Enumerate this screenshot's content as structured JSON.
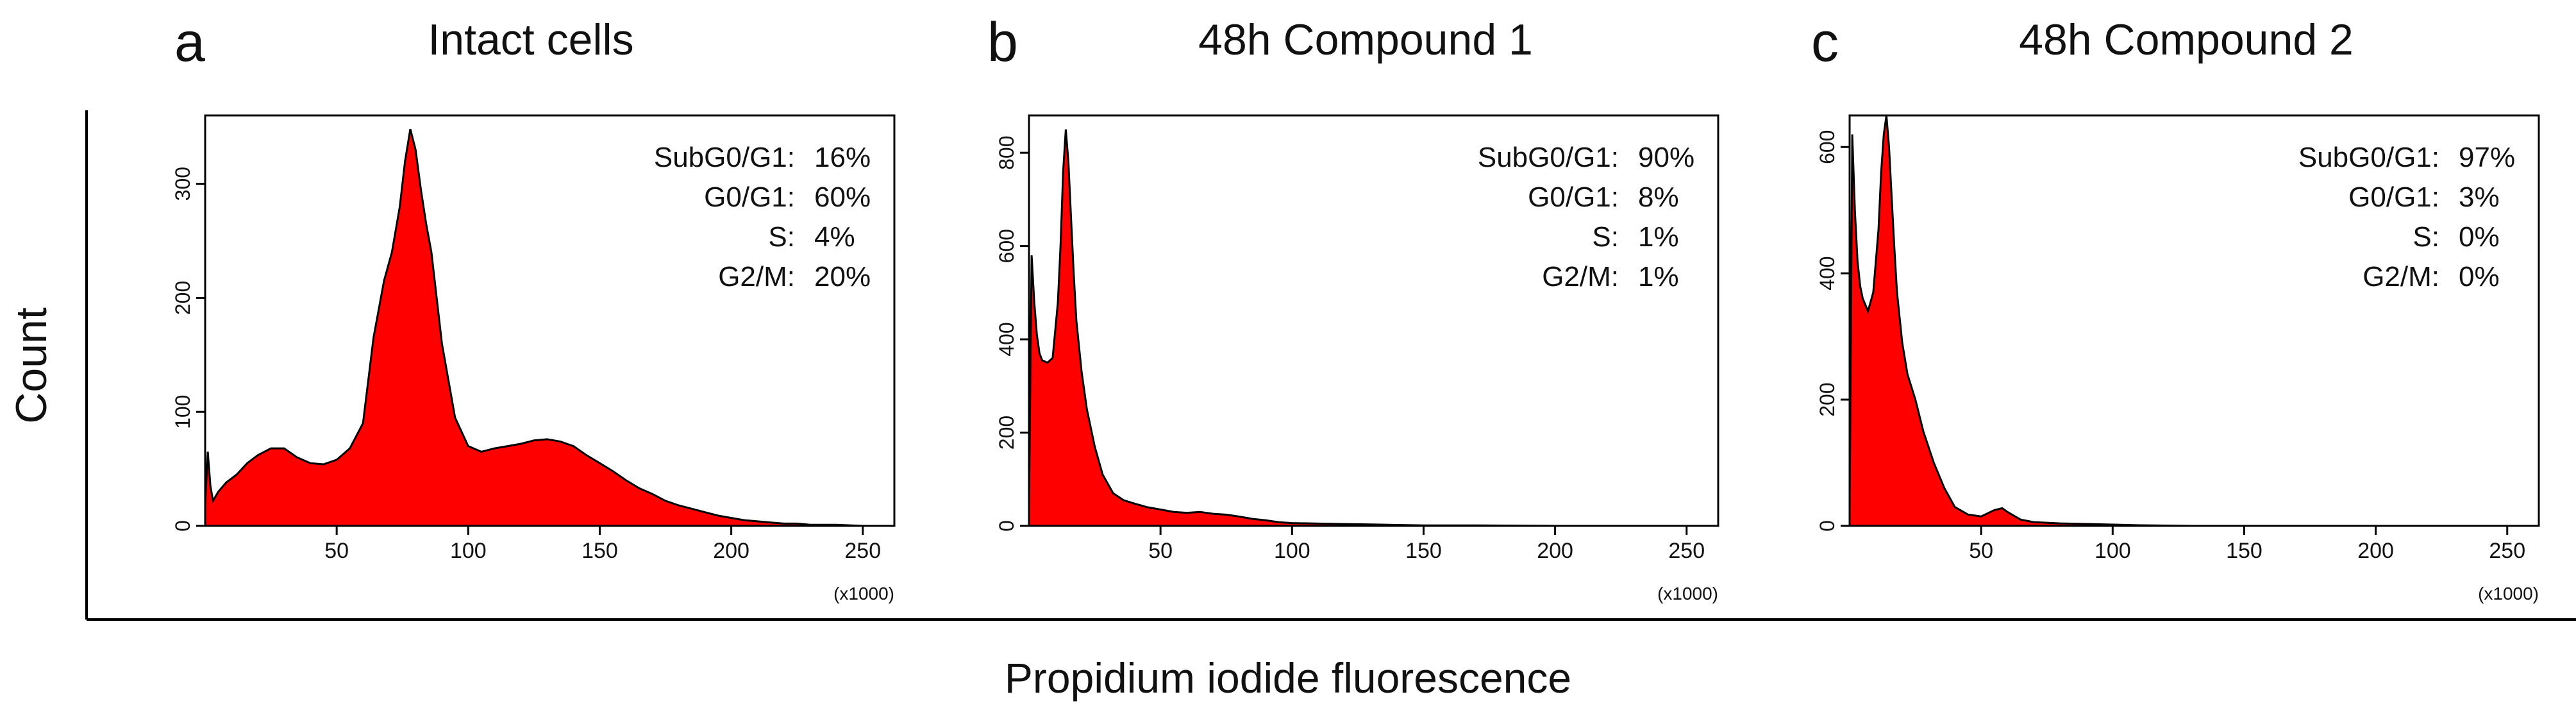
{
  "figure": {
    "ylabel": "Count",
    "xlabel": "Propidium iodide fluorescence"
  },
  "chart_data": [
    {
      "type": "area",
      "panel_letter": "a",
      "title": "Intact cells",
      "x_multiplier_label": "(x1000)",
      "xlim": [
        0,
        262
      ],
      "ylim": [
        0,
        360
      ],
      "x_ticks": [
        50,
        100,
        150,
        200,
        250
      ],
      "y_ticks": [
        0,
        100,
        200,
        300
      ],
      "fill_color": "#ff0000",
      "outline_color": "#000000",
      "x": [
        0,
        1,
        2,
        3,
        5,
        8,
        12,
        16,
        20,
        25,
        30,
        35,
        40,
        45,
        50,
        55,
        60,
        64,
        68,
        71,
        74,
        76,
        78,
        80,
        82,
        84,
        86,
        90,
        95,
        100,
        105,
        110,
        115,
        120,
        125,
        130,
        135,
        140,
        145,
        150,
        155,
        160,
        165,
        170,
        175,
        180,
        185,
        190,
        195,
        200,
        205,
        210,
        215,
        220,
        225,
        230,
        240,
        250,
        260
      ],
      "y": [
        20,
        65,
        35,
        22,
        30,
        38,
        45,
        55,
        62,
        68,
        68,
        60,
        55,
        54,
        58,
        68,
        90,
        165,
        215,
        240,
        280,
        320,
        348,
        330,
        295,
        265,
        240,
        160,
        95,
        70,
        65,
        68,
        70,
        72,
        75,
        76,
        74,
        70,
        62,
        55,
        48,
        40,
        33,
        28,
        22,
        18,
        15,
        12,
        9,
        7,
        5,
        4,
        3,
        2,
        2,
        1,
        1,
        0,
        0
      ],
      "stats": [
        {
          "label": "SubG0/G1:",
          "value": "16%"
        },
        {
          "label": "G0/G1:",
          "value": "60%"
        },
        {
          "label": "S:",
          "value": "4%"
        },
        {
          "label": "G2/M:",
          "value": "20%"
        }
      ]
    },
    {
      "type": "area",
      "panel_letter": "b",
      "title": "48h Compound 1",
      "x_multiplier_label": "(x1000)",
      "xlim": [
        0,
        262
      ],
      "ylim": [
        0,
        880
      ],
      "x_ticks": [
        50,
        100,
        150,
        200,
        250
      ],
      "y_ticks": [
        0,
        200,
        400,
        600,
        800
      ],
      "fill_color": "#ff0000",
      "outline_color": "#000000",
      "x": [
        0,
        1,
        2,
        3,
        4,
        5,
        7,
        9,
        11,
        12,
        13,
        14,
        15,
        16,
        17,
        18,
        20,
        22,
        25,
        28,
        32,
        36,
        40,
        45,
        50,
        55,
        60,
        65,
        70,
        75,
        80,
        85,
        90,
        95,
        100,
        110,
        120,
        130,
        140,
        150,
        170,
        200,
        230,
        260
      ],
      "y": [
        40,
        580,
        480,
        410,
        370,
        355,
        350,
        360,
        480,
        600,
        760,
        850,
        780,
        660,
        540,
        440,
        330,
        250,
        170,
        110,
        70,
        55,
        48,
        40,
        35,
        30,
        28,
        30,
        26,
        24,
        20,
        15,
        12,
        8,
        6,
        5,
        4,
        3,
        2,
        1,
        1,
        0,
        0,
        0
      ],
      "stats": [
        {
          "label": "SubG0/G1:",
          "value": "90%"
        },
        {
          "label": "G0/G1:",
          "value": "8%"
        },
        {
          "label": "S:",
          "value": "1%"
        },
        {
          "label": "G2/M:",
          "value": "1%"
        }
      ]
    },
    {
      "type": "area",
      "panel_letter": "c",
      "title": "48h Compound 2",
      "x_multiplier_label": "(x1000)",
      "xlim": [
        0,
        262
      ],
      "ylim": [
        0,
        650
      ],
      "x_ticks": [
        50,
        100,
        150,
        200,
        250
      ],
      "y_ticks": [
        0,
        200,
        400,
        600
      ],
      "fill_color": "#ff0000",
      "outline_color": "#000000",
      "x": [
        0,
        1,
        2,
        3,
        4,
        5,
        7,
        9,
        11,
        12,
        13,
        14,
        15,
        16,
        17,
        18,
        20,
        22,
        25,
        28,
        32,
        36,
        40,
        45,
        50,
        55,
        58,
        60,
        65,
        70,
        80,
        90,
        100,
        110,
        130,
        160,
        200,
        260
      ],
      "y": [
        20,
        620,
        500,
        420,
        380,
        360,
        340,
        370,
        470,
        560,
        620,
        650,
        600,
        520,
        440,
        370,
        290,
        240,
        200,
        150,
        100,
        60,
        30,
        18,
        15,
        25,
        28,
        22,
        10,
        6,
        4,
        3,
        2,
        1,
        0,
        0,
        0,
        0
      ],
      "stats": [
        {
          "label": "SubG0/G1:",
          "value": "97%"
        },
        {
          "label": "G0/G1:",
          "value": "3%"
        },
        {
          "label": "S:",
          "value": "0%"
        },
        {
          "label": "G2/M:",
          "value": "0%"
        }
      ]
    }
  ]
}
